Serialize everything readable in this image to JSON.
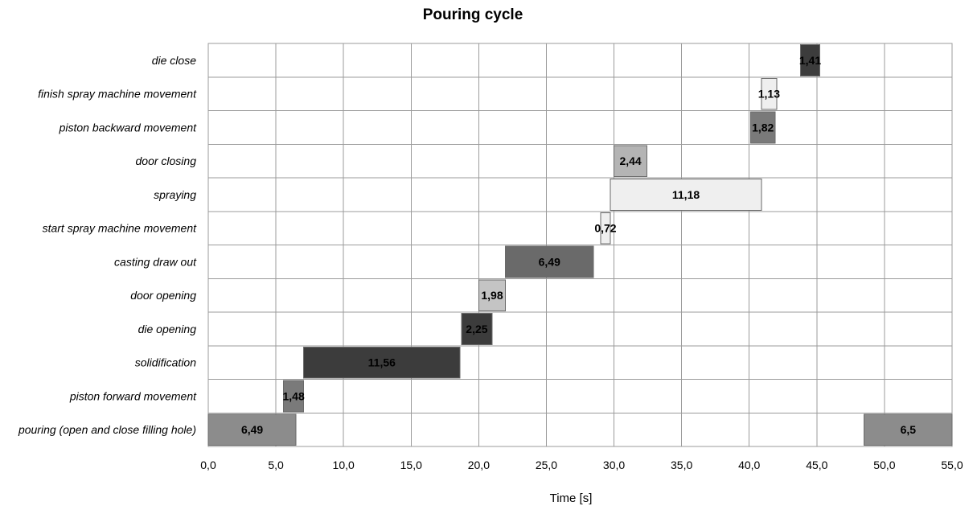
{
  "chart_data": {
    "type": "bar",
    "orientation": "horizontal-gantt",
    "title": "Pouring cycle",
    "xlabel": "Time [s]",
    "ylabel": "",
    "xlim": [
      0,
      55
    ],
    "x_ticks": [
      "0,0",
      "5,0",
      "10,0",
      "15,0",
      "20,0",
      "25,0",
      "30,0",
      "35,0",
      "40,0",
      "45,0",
      "50,0",
      "55,0"
    ],
    "grid": true,
    "categories": [
      "die close",
      "finish spray machine movement",
      "piston backward movement",
      "door closing",
      "spraying",
      "start spray machine movement",
      "casting draw out",
      "door opening",
      "die opening",
      "solidification",
      "piston forward movement",
      "pouring (open and close filling hole)"
    ],
    "tasks": [
      {
        "row": 0,
        "start": 43.8,
        "duration": 1.41,
        "label": "1,41",
        "color": "#3c3c3c"
      },
      {
        "row": 1,
        "start": 40.9,
        "duration": 1.13,
        "label": "1,13",
        "color": "#efefef"
      },
      {
        "row": 2,
        "start": 40.1,
        "duration": 1.82,
        "label": "1,82",
        "color": "#7a7a7a"
      },
      {
        "row": 3,
        "start": 30.0,
        "duration": 2.44,
        "label": "2,44",
        "color": "#b4b4b4"
      },
      {
        "row": 4,
        "start": 29.73,
        "duration": 11.18,
        "label": "11,18",
        "color": "#efefef"
      },
      {
        "row": 5,
        "start": 29.01,
        "duration": 0.72,
        "label": "0,72",
        "color": "#efefef"
      },
      {
        "row": 6,
        "start": 21.98,
        "duration": 6.49,
        "label": "6,49",
        "color": "#6a6a6a"
      },
      {
        "row": 7,
        "start": 20.0,
        "duration": 1.98,
        "label": "1,98",
        "color": "#c4c4c4"
      },
      {
        "row": 8,
        "start": 18.73,
        "duration": 2.25,
        "label": "2,25",
        "color": "#3c3c3c"
      },
      {
        "row": 9,
        "start": 7.05,
        "duration": 11.56,
        "label": "11,56",
        "color": "#3c3c3c"
      },
      {
        "row": 10,
        "start": 5.57,
        "duration": 1.48,
        "label": "1,48",
        "color": "#7a7a7a"
      },
      {
        "row": 11,
        "start": 0,
        "duration": 6.49,
        "label": "6,49",
        "color": "#8c8c8c"
      },
      {
        "row": 11,
        "start": 48.5,
        "duration": 6.5,
        "label": "6,5",
        "color": "#8c8c8c"
      }
    ]
  }
}
